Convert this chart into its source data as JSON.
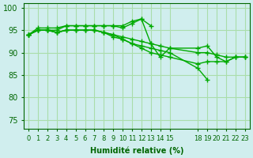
{
  "background_color": "#d0eeee",
  "grid_color": "#aaddaa",
  "line_color": "#00aa00",
  "xlabel": "Humidité relative (%)",
  "xlim": [
    -0.5,
    23.5
  ],
  "ylim": [
    73,
    101
  ],
  "yticks": [
    75,
    80,
    85,
    90,
    95,
    100
  ],
  "xtick_positions": [
    0,
    1,
    2,
    3,
    4,
    5,
    6,
    7,
    8,
    9,
    10,
    11,
    12,
    13,
    14,
    15,
    18,
    19,
    20,
    21,
    22,
    23
  ],
  "xtick_labels": [
    "0",
    "1",
    "2",
    "3",
    "4",
    "5",
    "6",
    "7",
    "8",
    "9",
    "10",
    "11",
    "12",
    "13",
    "14",
    "15",
    "18",
    "19",
    "20",
    "21",
    "22",
    "23"
  ],
  "series": [
    [
      94.0,
      95.0,
      95.0,
      95.0,
      96.0,
      96.0,
      96.0,
      96.0,
      96.0,
      96.0,
      96.0,
      97.0,
      97.5,
      96.0,
      null,
      null,
      null,
      null,
      null,
      null,
      null,
      null
    ],
    [
      94.0,
      95.5,
      95.5,
      95.5,
      96.0,
      96.0,
      96.0,
      96.0,
      96.0,
      96.0,
      95.5,
      96.5,
      97.5,
      92.0,
      89.0,
      91.0,
      91.0,
      91.5,
      89.0,
      88.0,
      89.0,
      89.0
    ],
    [
      94.0,
      95.0,
      95.0,
      94.5,
      95.0,
      95.0,
      95.0,
      95.0,
      94.5,
      94.0,
      93.5,
      93.0,
      92.5,
      92.0,
      91.5,
      91.0,
      90.0,
      90.0,
      89.5,
      89.0,
      89.0,
      89.0
    ],
    [
      94.0,
      95.0,
      95.0,
      94.5,
      95.0,
      95.0,
      95.0,
      95.0,
      94.5,
      94.0,
      93.0,
      92.0,
      91.5,
      91.0,
      90.5,
      90.0,
      86.5,
      84.0,
      null,
      null,
      null,
      null
    ],
    [
      94.0,
      95.0,
      95.0,
      94.5,
      95.0,
      95.0,
      95.0,
      95.0,
      94.5,
      93.5,
      93.0,
      92.0,
      91.0,
      90.0,
      89.5,
      89.0,
      87.5,
      88.0,
      88.0,
      88.0,
      89.0,
      89.0
    ]
  ],
  "x_positions": [
    0,
    1,
    2,
    3,
    4,
    5,
    6,
    7,
    8,
    9,
    10,
    11,
    12,
    13,
    14,
    15,
    18,
    19,
    20,
    21,
    22,
    23
  ]
}
